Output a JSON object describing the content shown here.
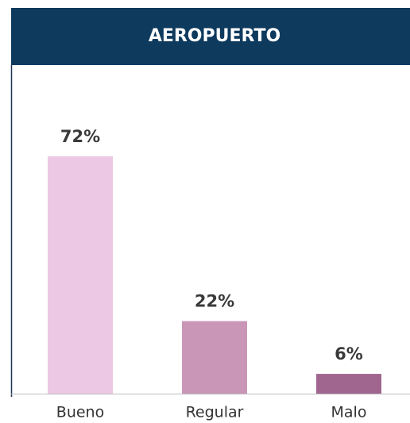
{
  "chart_data": {
    "type": "bar",
    "title": "AEROPUERTO",
    "categories": [
      "Bueno",
      "Regular",
      "Malo"
    ],
    "values": [
      72,
      22,
      6
    ],
    "value_labels": [
      "72%",
      "22%",
      "6%"
    ],
    "colors": [
      "#ecc8e4",
      "#c996b8",
      "#a1668f"
    ]
  }
}
